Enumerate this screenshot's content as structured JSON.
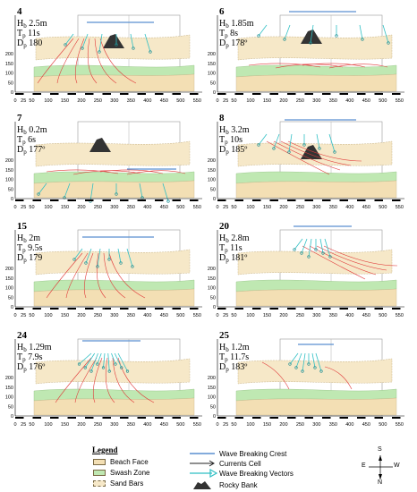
{
  "panels": [
    {
      "id": "4",
      "hb": "2.5m",
      "tp": "11s",
      "dp": "180"
    },
    {
      "id": "6",
      "hb": "1.85m",
      "tp": "8s",
      "dp": "178º"
    },
    {
      "id": "7",
      "hb": "0.2m",
      "tp": "6s",
      "dp": "177º"
    },
    {
      "id": "8",
      "hb": "3.2m",
      "tp": "10s",
      "dp": "185º"
    },
    {
      "id": "15",
      "hb": "2m",
      "tp": "9.5s",
      "dp": "179"
    },
    {
      "id": "20",
      "hb": "2.8m",
      "tp": "11s",
      "dp": "181º"
    },
    {
      "id": "24",
      "hb": "1.29m",
      "tp": "7.9s",
      "dp": "176º"
    },
    {
      "id": "25",
      "hb": "1.2m",
      "tp": "11.7s",
      "dp": "183º"
    }
  ],
  "labels": {
    "h": "H",
    "h_sub": "b",
    "t": "T",
    "t_sub": "p",
    "d": "D",
    "d_sub": "p"
  },
  "x_ticks": [
    "0",
    "25",
    "50",
    "100",
    "150",
    "200",
    "250",
    "300",
    "350",
    "400",
    "450",
    "500",
    "550"
  ],
  "y_ticks": [
    "0",
    "50",
    "100",
    "150",
    "200"
  ],
  "legend": {
    "title": "Legend",
    "beach_face": "Beach Face",
    "swash_zone": "Swash Zone",
    "sand_bars": "Sand Bars",
    "crest": "Wave Breaking Crest",
    "currents": "Currents Cell",
    "vectors": "Wave Breaking Vectors",
    "rocky": "Rocky Bank"
  },
  "compass": {
    "s": "S",
    "e": "E",
    "w": "W",
    "n": "N"
  },
  "colors": {
    "beach_face": "#f3dfb4",
    "swash_zone": "#bfe8b2",
    "sand_bars": "#f6e8c8",
    "crest": "#5a8fd0",
    "currents": "#e03a3a",
    "vectors": "#2fbfc4",
    "rocky": "#333333"
  }
}
